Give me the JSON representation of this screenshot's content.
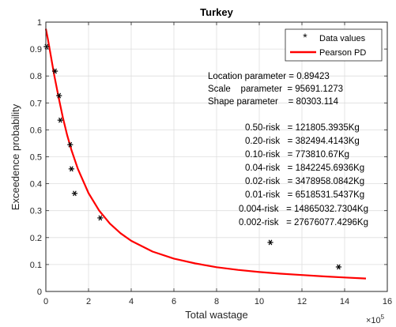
{
  "chart_data": {
    "type": "scatter",
    "title": "Turkey",
    "xlabel": "Total wastage",
    "ylabel": "Exceedence probability",
    "x_multiplier": "×10",
    "x_multiplier_exp": "5",
    "xlim": [
      0,
      16
    ],
    "ylim": [
      0,
      1
    ],
    "xticks": [
      0,
      2,
      4,
      6,
      8,
      10,
      12,
      14,
      16
    ],
    "yticks": [
      0,
      0.1,
      0.2,
      0.3,
      0.4,
      0.5,
      0.6,
      0.7,
      0.8,
      0.9,
      1
    ],
    "grid": true,
    "legend_position": "top-right",
    "series": [
      {
        "name": "Data values",
        "kind": "scatter",
        "marker": "*",
        "color": "#000000",
        "x": [
          0.03,
          0.43,
          0.62,
          0.68,
          1.14,
          1.2,
          1.35,
          2.55,
          10.52,
          13.72
        ],
        "y": [
          0.909,
          0.818,
          0.727,
          0.636,
          0.545,
          0.455,
          0.364,
          0.273,
          0.182,
          0.091
        ]
      },
      {
        "name": "Pearson PD",
        "kind": "line",
        "color": "#ff0000",
        "x": [
          0.0,
          0.1,
          0.2,
          0.3,
          0.4,
          0.5,
          0.6,
          0.8,
          1.0,
          1.2,
          1.5,
          2.0,
          2.5,
          3.0,
          3.5,
          4.0,
          5.0,
          6.0,
          7.0,
          8.0,
          9.0,
          10.0,
          11.0,
          12.0,
          13.0,
          14.0,
          15.0
        ],
        "y": [
          0.975,
          0.935,
          0.89,
          0.845,
          0.8,
          0.76,
          0.72,
          0.645,
          0.58,
          0.525,
          0.455,
          0.365,
          0.3,
          0.252,
          0.216,
          0.188,
          0.148,
          0.122,
          0.104,
          0.09,
          0.08,
          0.072,
          0.066,
          0.061,
          0.056,
          0.052,
          0.048
        ]
      }
    ],
    "annotations": {
      "parameters": [
        "Location parameter = 0.89423",
        "Scale    parameter  = 95691.1273",
        "Shape parameter    = 80303.114"
      ],
      "risks": [
        "0.50-risk   = 121805.3935Kg",
        "0.20-risk   = 382494.4143Kg",
        "0.10-risk   = 773810.67Kg",
        "0.04-risk   = 1842245.6936Kg",
        "0.02-risk   = 3478958.0842Kg",
        "0.01-risk   = 6518531.5437Kg",
        "0.004-risk   = 14865032.7304Kg",
        "0.002-risk   = 27676077.4296Kg"
      ]
    }
  }
}
